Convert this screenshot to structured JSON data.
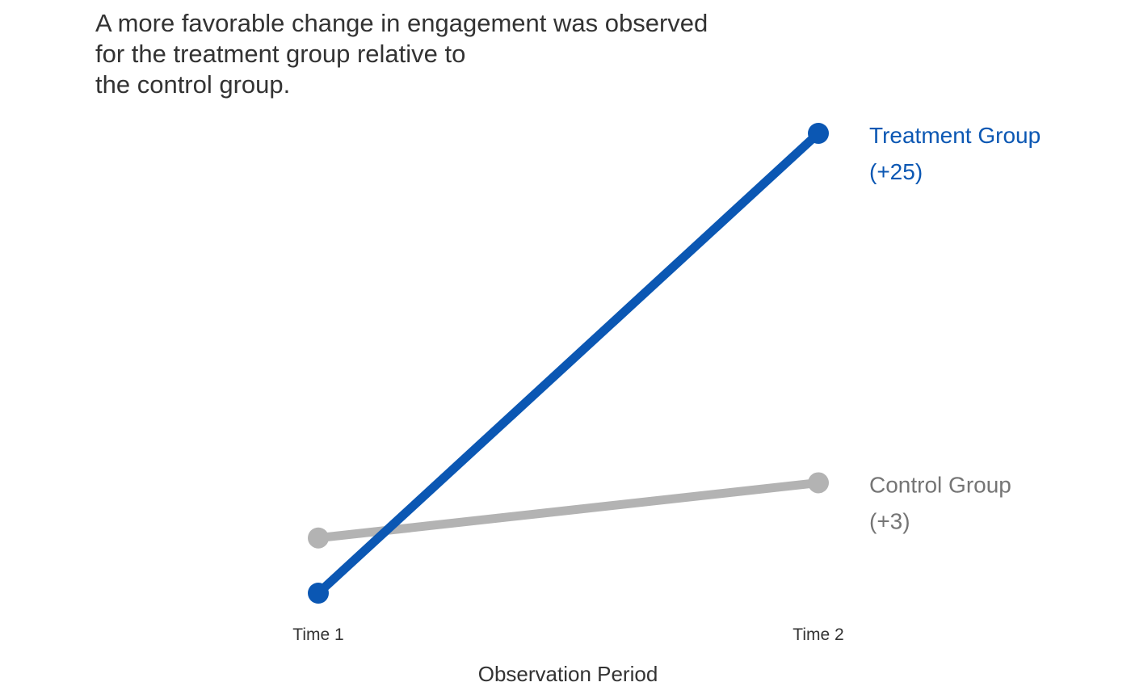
{
  "chart_data": {
    "type": "line",
    "title": "A more favorable change in engagement was observed\nfor the treatment group relative to\nthe control group.",
    "xlabel": "Observation Period",
    "ylabel": "",
    "categories": [
      "Time 1",
      "Time 2"
    ],
    "ylim": [
      0,
      30
    ],
    "grid": false,
    "legend": "direct labels at right end of lines",
    "series": [
      {
        "name": "Control Group",
        "change_label": "(+3)",
        "values": [
          3,
          6
        ],
        "color": "#b3b3b3"
      },
      {
        "name": "Treatment Group",
        "change_label": "(+25)",
        "values": [
          0,
          25
        ],
        "color": "#0b57b3"
      }
    ]
  }
}
